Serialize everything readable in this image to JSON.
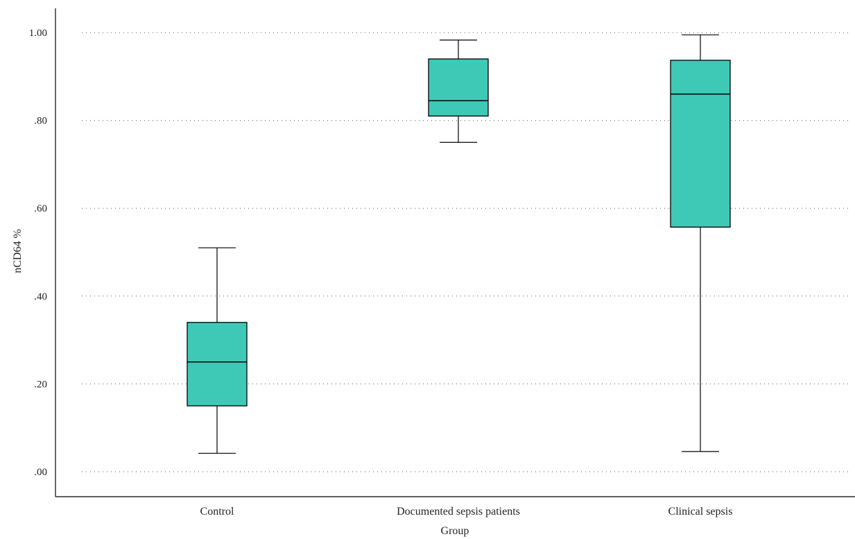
{
  "chart_data": {
    "type": "boxplot",
    "title": "",
    "xlabel": "Group",
    "ylabel": "nCD64 %",
    "ylim": [
      0,
      1
    ],
    "yticks": [
      0,
      0.2,
      0.4,
      0.6,
      0.8,
      1.0
    ],
    "ytick_labels": [
      ".00",
      ".20",
      ".40",
      ".60",
      ".80",
      "1.00"
    ],
    "grid": "horizontal-dotted",
    "box_color": "#3ec9b6",
    "categories": [
      "Control",
      "Documented sepsis patients",
      "Clinical sepsis"
    ],
    "boxes": [
      {
        "category": "Control",
        "min": 0.042,
        "q1": 0.15,
        "median": 0.25,
        "q3": 0.34,
        "max": 0.51
      },
      {
        "category": "Documented sepsis patients",
        "min": 0.75,
        "q1": 0.81,
        "median": 0.845,
        "q3": 0.94,
        "max": 0.983
      },
      {
        "category": "Clinical sepsis",
        "min": 0.046,
        "q1": 0.557,
        "median": 0.86,
        "q3": 0.937,
        "max": 0.995
      }
    ]
  }
}
